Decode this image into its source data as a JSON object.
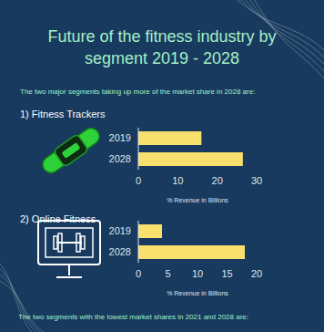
{
  "title": "Future of the fitness industry by segment 2019 - 2028",
  "subtitle": "The two major segments taking up more of the market share in 2028 are:",
  "footer": "The two segments with the lowest market shares in 2021 and 2028 are:",
  "chart_data": [
    {
      "type": "bar",
      "orientation": "horizontal",
      "title": "1) Fitness Trackers",
      "categories": [
        "2019",
        "2028"
      ],
      "values": [
        16,
        26.5
      ],
      "color": "#f9e06c",
      "xlabel": "% Revenue in Billions",
      "xlim": [
        0,
        30
      ],
      "xticks": [
        0,
        10,
        20,
        30
      ]
    },
    {
      "type": "bar",
      "orientation": "horizontal",
      "title": "2) Online Fitness",
      "categories": [
        "2019",
        "2028"
      ],
      "values": [
        4,
        18
      ],
      "color": "#f9e06c",
      "xlabel": "% Revenue in Billions",
      "xlim": [
        0,
        20
      ],
      "xticks": [
        0,
        5,
        10,
        15,
        20
      ]
    }
  ]
}
